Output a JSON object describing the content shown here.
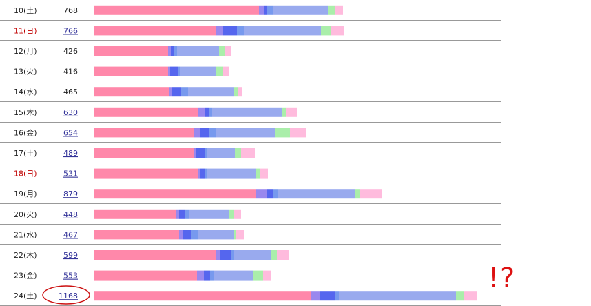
{
  "chart_data": {
    "type": "bar",
    "stacked": true,
    "orientation": "horizontal",
    "rows": [
      {
        "label": "10(土)",
        "value": "768",
        "linked": false,
        "holiday": false,
        "segments": [
          240,
          7,
          5,
          9,
          79,
          10,
          12
        ]
      },
      {
        "label": "11(日)",
        "value": "766",
        "linked": true,
        "holiday": true,
        "segments": [
          178,
          10,
          20,
          10,
          112,
          14,
          19
        ]
      },
      {
        "label": "12(月)",
        "value": "426",
        "linked": false,
        "holiday": false,
        "segments": [
          108,
          4,
          5,
          4,
          61,
          8,
          10
        ]
      },
      {
        "label": "13(火)",
        "value": "416",
        "linked": false,
        "holiday": false,
        "segments": [
          108,
          3,
          12,
          3,
          52,
          10,
          8
        ]
      },
      {
        "label": "14(水)",
        "value": "465",
        "linked": false,
        "holiday": false,
        "segments": [
          110,
          3,
          14,
          10,
          67,
          5,
          7
        ]
      },
      {
        "label": "15(木)",
        "value": "630",
        "linked": true,
        "holiday": false,
        "segments": [
          151,
          10,
          7,
          4,
          101,
          6,
          16
        ]
      },
      {
        "label": "16(金)",
        "value": "654",
        "linked": true,
        "holiday": false,
        "segments": [
          145,
          10,
          12,
          10,
          86,
          22,
          23
        ]
      },
      {
        "label": "17(土)",
        "value": "489",
        "linked": true,
        "holiday": false,
        "segments": [
          145,
          4,
          13,
          3,
          40,
          9,
          20
        ]
      },
      {
        "label": "18(日)",
        "value": "531",
        "linked": true,
        "holiday": true,
        "segments": [
          151,
          3,
          8,
          3,
          70,
          6,
          12
        ]
      },
      {
        "label": "19(月)",
        "value": "879",
        "linked": true,
        "holiday": false,
        "segments": [
          235,
          17,
          8,
          7,
          113,
          7,
          31
        ]
      },
      {
        "label": "20(火)",
        "value": "448",
        "linked": true,
        "holiday": false,
        "segments": [
          120,
          4,
          9,
          5,
          59,
          6,
          11
        ]
      },
      {
        "label": "21(水)",
        "value": "467",
        "linked": true,
        "holiday": false,
        "segments": [
          124,
          6,
          12,
          10,
          51,
          4,
          11
        ]
      },
      {
        "label": "22(木)",
        "value": "599",
        "linked": true,
        "holiday": false,
        "segments": [
          178,
          5,
          16,
          5,
          53,
          9,
          17
        ]
      },
      {
        "label": "23(金)",
        "value": "553",
        "linked": true,
        "holiday": false,
        "segments": [
          150,
          10,
          9,
          5,
          58,
          14,
          12
        ]
      },
      {
        "label": "24(土)",
        "value": "1168",
        "linked": true,
        "holiday": false,
        "segments": [
          315,
          13,
          22,
          6,
          170,
          11,
          19
        ]
      }
    ],
    "segment_colors": [
      "#ff88aa",
      "#9988ee",
      "#5566ee",
      "#7799ee",
      "#99aaee",
      "#aaeeaa",
      "#ffbbdd"
    ],
    "highlight_row": "24(土)"
  },
  "annotation": {
    "text": "!?"
  },
  "colors": {
    "holiday": "#c00000",
    "link": "#333399",
    "grid": "#999999",
    "circle": "#cc1111"
  }
}
